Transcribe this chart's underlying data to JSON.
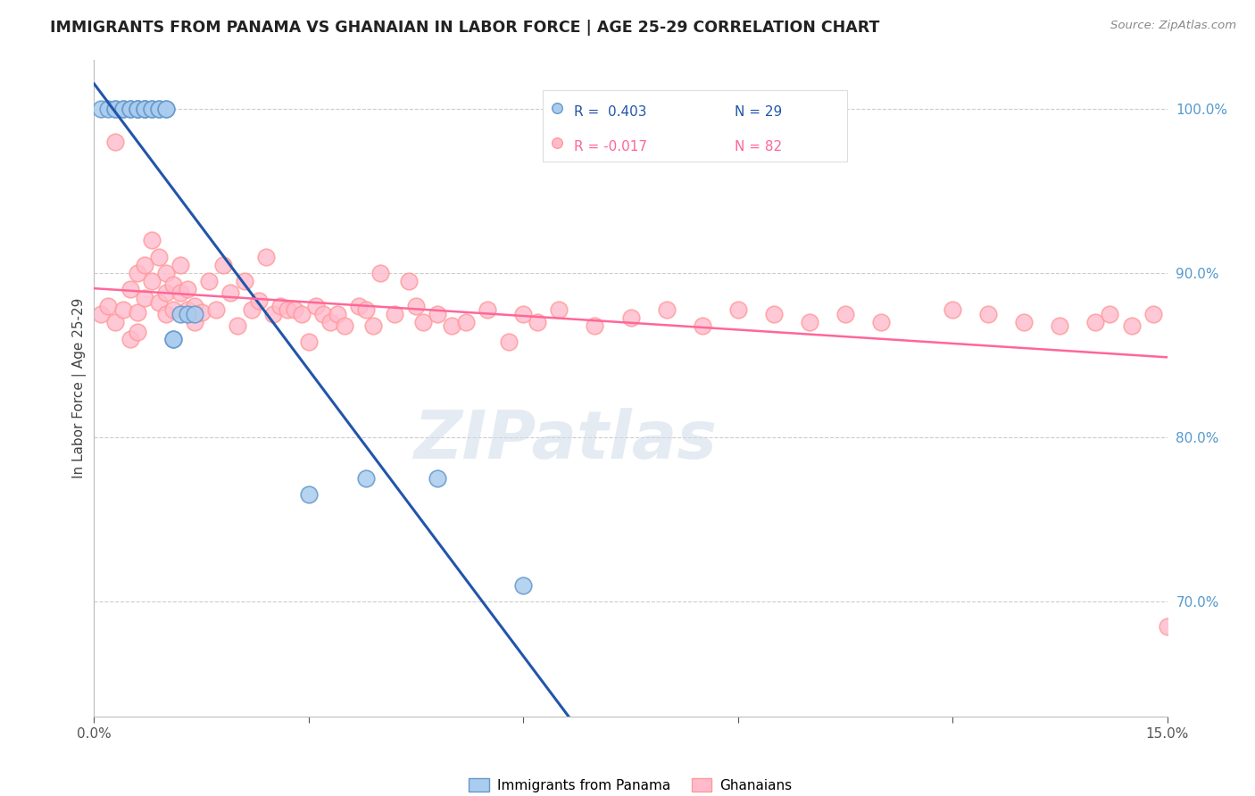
{
  "title": "IMMIGRANTS FROM PANAMA VS GHANAIAN IN LABOR FORCE | AGE 25-29 CORRELATION CHART",
  "source": "Source: ZipAtlas.com",
  "ylabel": "In Labor Force | Age 25-29",
  "right_ytick_labels": [
    "100.0%",
    "90.0%",
    "80.0%",
    "70.0%"
  ],
  "right_ytick_values": [
    1.0,
    0.9,
    0.8,
    0.7
  ],
  "xlim": [
    0.0,
    0.15
  ],
  "ylim": [
    0.63,
    1.03
  ],
  "legend_r_blue": "R =  0.403",
  "legend_n_blue": "N = 29",
  "legend_r_pink": "R = -0.017",
  "legend_n_pink": "N = 82",
  "blue_face_color": "#aaccee",
  "blue_edge_color": "#6699CC",
  "pink_face_color": "#ffbbcc",
  "pink_edge_color": "#FF9999",
  "trend_blue_color": "#2255AA",
  "trend_pink_color": "#FF6699",
  "watermark": "ZIPatlas",
  "blue_scatter_x": [
    0.001,
    0.002,
    0.003,
    0.003,
    0.004,
    0.004,
    0.005,
    0.005,
    0.006,
    0.006,
    0.006,
    0.007,
    0.007,
    0.007,
    0.008,
    0.008,
    0.009,
    0.009,
    0.01,
    0.01,
    0.011,
    0.011,
    0.012,
    0.013,
    0.014,
    0.03,
    0.038,
    0.048,
    0.06
  ],
  "blue_scatter_y": [
    1.0,
    1.0,
    1.0,
    1.0,
    1.0,
    1.0,
    1.0,
    1.0,
    1.0,
    1.0,
    1.0,
    1.0,
    1.0,
    1.0,
    1.0,
    1.0,
    1.0,
    1.0,
    1.0,
    1.0,
    0.86,
    0.86,
    0.875,
    0.875,
    0.875,
    0.765,
    0.775,
    0.775,
    0.71
  ],
  "pink_scatter_x": [
    0.001,
    0.002,
    0.003,
    0.003,
    0.004,
    0.005,
    0.005,
    0.006,
    0.006,
    0.006,
    0.007,
    0.007,
    0.008,
    0.008,
    0.009,
    0.009,
    0.01,
    0.01,
    0.01,
    0.011,
    0.011,
    0.012,
    0.012,
    0.013,
    0.013,
    0.014,
    0.014,
    0.015,
    0.016,
    0.017,
    0.018,
    0.019,
    0.02,
    0.021,
    0.022,
    0.023,
    0.024,
    0.025,
    0.026,
    0.027,
    0.028,
    0.029,
    0.03,
    0.031,
    0.032,
    0.033,
    0.034,
    0.035,
    0.037,
    0.038,
    0.039,
    0.04,
    0.042,
    0.044,
    0.045,
    0.046,
    0.048,
    0.05,
    0.052,
    0.055,
    0.058,
    0.06,
    0.062,
    0.065,
    0.07,
    0.075,
    0.08,
    0.085,
    0.09,
    0.095,
    0.1,
    0.105,
    0.11,
    0.12,
    0.125,
    0.13,
    0.135,
    0.14,
    0.142,
    0.145,
    0.148,
    0.15
  ],
  "pink_scatter_y": [
    0.875,
    0.88,
    0.87,
    0.98,
    0.878,
    0.89,
    0.86,
    0.9,
    0.876,
    0.864,
    0.905,
    0.885,
    0.92,
    0.895,
    0.91,
    0.882,
    0.9,
    0.888,
    0.875,
    0.893,
    0.878,
    0.905,
    0.888,
    0.878,
    0.89,
    0.88,
    0.87,
    0.876,
    0.895,
    0.878,
    0.905,
    0.888,
    0.868,
    0.895,
    0.878,
    0.883,
    0.91,
    0.875,
    0.88,
    0.878,
    0.878,
    0.875,
    0.858,
    0.88,
    0.875,
    0.87,
    0.875,
    0.868,
    0.88,
    0.878,
    0.868,
    0.9,
    0.875,
    0.895,
    0.88,
    0.87,
    0.875,
    0.868,
    0.87,
    0.878,
    0.858,
    0.875,
    0.87,
    0.878,
    0.868,
    0.873,
    0.878,
    0.868,
    0.878,
    0.875,
    0.87,
    0.875,
    0.87,
    0.878,
    0.875,
    0.87,
    0.868,
    0.87,
    0.875,
    0.868,
    0.875,
    0.685
  ]
}
